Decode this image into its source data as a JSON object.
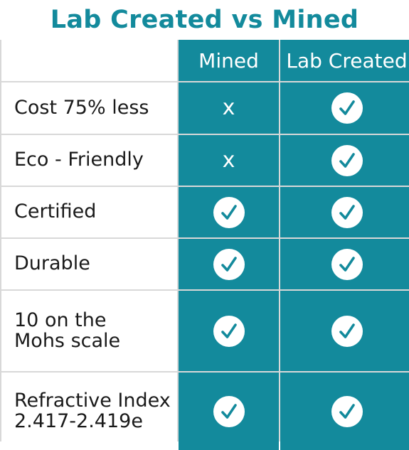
{
  "title": "Lab Created vs Mined",
  "columns": [
    "Mined",
    "Lab Created"
  ],
  "rows": [
    {
      "label": "Cost 75% less",
      "mined": "x",
      "lab": "check"
    },
    {
      "label": "Eco - Friendly",
      "mined": "x",
      "lab": "check"
    },
    {
      "label": "Certified",
      "mined": "check",
      "lab": "check"
    },
    {
      "label": "Durable",
      "mined": "check",
      "lab": "check"
    },
    {
      "label": "10 on the\nMohs scale",
      "mined": "check",
      "lab": "check"
    },
    {
      "label": "Refractive Index\n2.417-2.419e",
      "mined": "check",
      "lab": "check"
    }
  ],
  "icons": {
    "check": "check-circle-icon",
    "x": "x-mark-icon"
  },
  "colors": {
    "accent": "#138a9c",
    "text": "#1a1a1a",
    "grid_line": "#d8d8d8"
  }
}
